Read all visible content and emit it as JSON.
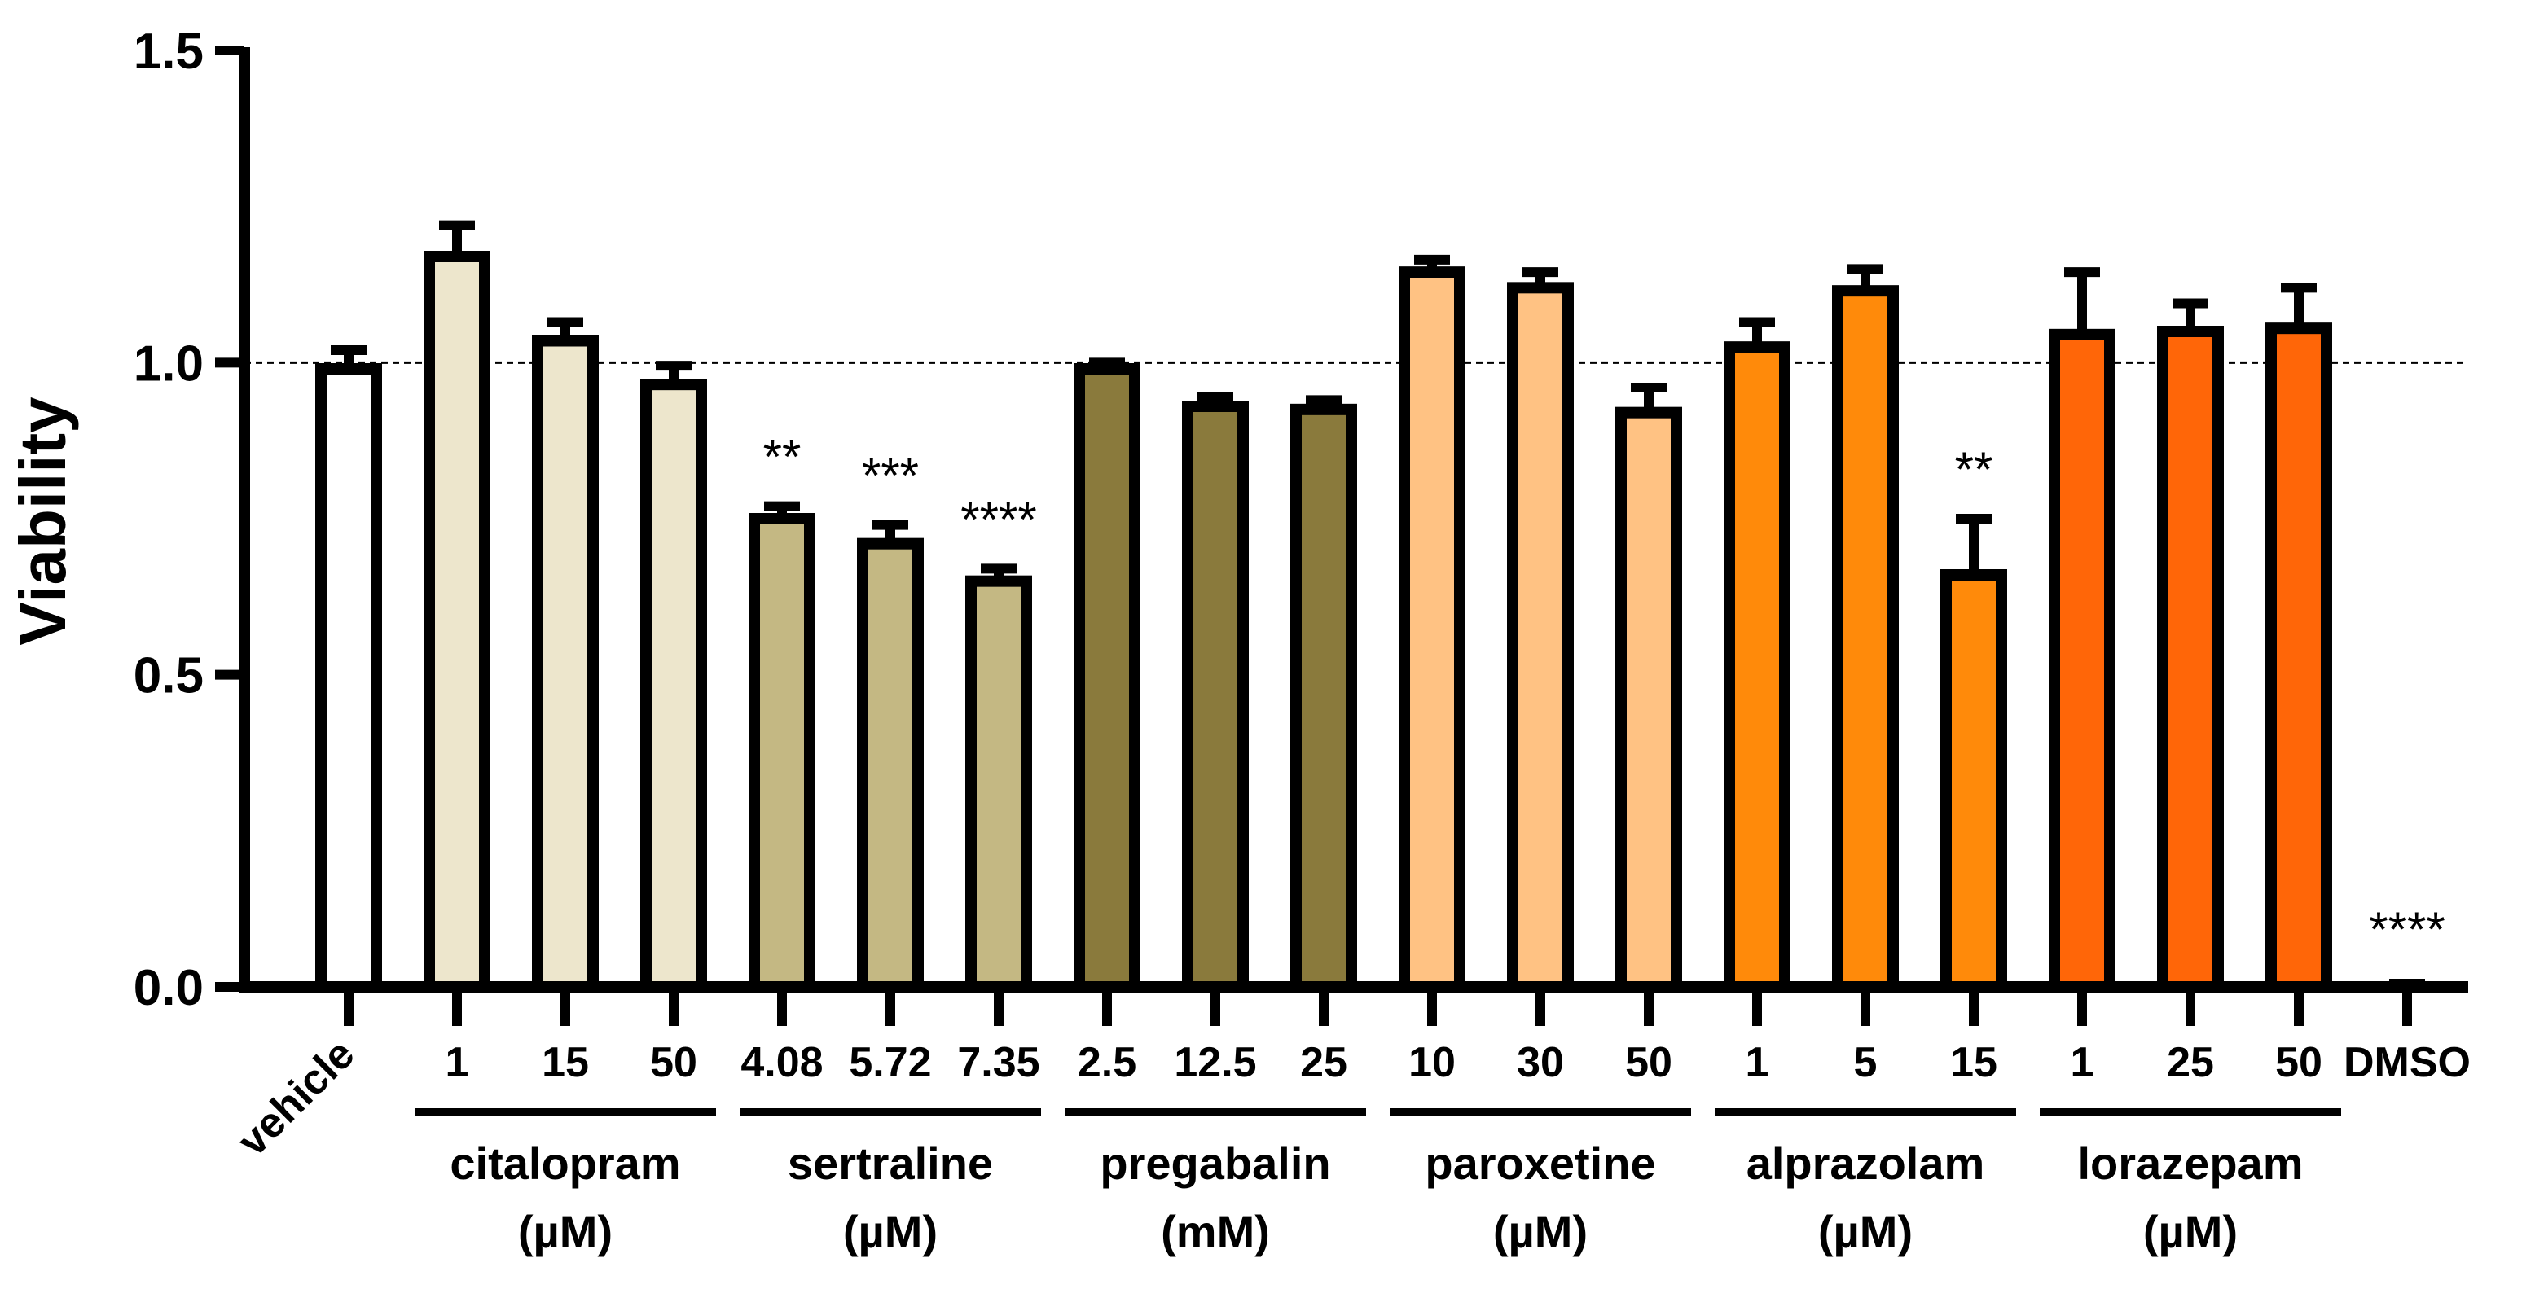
{
  "chart_data": {
    "type": "bar",
    "title": "",
    "xlabel": "",
    "ylabel": "Viability",
    "ylim": [
      0,
      1.5
    ],
    "yticks": [
      {
        "value": 0,
        "label": "0.0"
      },
      {
        "value": 0.5,
        "label": "0.5"
      },
      {
        "value": 1.0,
        "label": "1.0"
      },
      {
        "value": 1.5,
        "label": "1.5"
      }
    ],
    "reference_line": 1.0,
    "categories": [
      {
        "label": "vehicle",
        "value": 0.99,
        "err": 0.03,
        "color": "#ffffff",
        "sig": "",
        "rotated": true
      },
      {
        "label": "1",
        "value": 1.17,
        "err": 0.05,
        "color": "#ede6cc",
        "sig": ""
      },
      {
        "label": "15",
        "value": 1.035,
        "err": 0.03,
        "color": "#ede6cc",
        "sig": ""
      },
      {
        "label": "50",
        "value": 0.965,
        "err": 0.03,
        "color": "#ede6cc",
        "sig": ""
      },
      {
        "label": "4.08",
        "value": 0.75,
        "err": 0.02,
        "color": "#c4b883",
        "sig": "**"
      },
      {
        "label": "5.72",
        "value": 0.71,
        "err": 0.03,
        "color": "#c4b883",
        "sig": "***"
      },
      {
        "label": "7.35",
        "value": 0.65,
        "err": 0.02,
        "color": "#c4b883",
        "sig": "****"
      },
      {
        "label": "2.5",
        "value": 0.99,
        "err": 0.01,
        "color": "#8a7a3c",
        "sig": ""
      },
      {
        "label": "12.5",
        "value": 0.93,
        "err": 0.015,
        "color": "#8a7a3c",
        "sig": ""
      },
      {
        "label": "25",
        "value": 0.925,
        "err": 0.015,
        "color": "#8a7a3c",
        "sig": ""
      },
      {
        "label": "10",
        "value": 1.145,
        "err": 0.02,
        "color": "#ffc283",
        "sig": ""
      },
      {
        "label": "30",
        "value": 1.12,
        "err": 0.025,
        "color": "#ffc283",
        "sig": ""
      },
      {
        "label": "50",
        "value": 0.92,
        "err": 0.04,
        "color": "#ffc283",
        "sig": ""
      },
      {
        "label": "1",
        "value": 1.025,
        "err": 0.04,
        "color": "#ff8a0a",
        "sig": ""
      },
      {
        "label": "5",
        "value": 1.115,
        "err": 0.035,
        "color": "#ff8a0a",
        "sig": ""
      },
      {
        "label": "15",
        "value": 0.66,
        "err": 0.09,
        "color": "#ff8a0a",
        "sig": "**"
      },
      {
        "label": "1",
        "value": 1.045,
        "err": 0.1,
        "color": "#ff6608",
        "sig": ""
      },
      {
        "label": "25",
        "value": 1.05,
        "err": 0.045,
        "color": "#ff6608",
        "sig": ""
      },
      {
        "label": "50",
        "value": 1.055,
        "err": 0.065,
        "color": "#ff6608",
        "sig": ""
      },
      {
        "label": "DMSO",
        "value": 0.0,
        "err": 0.0,
        "color": "#ffffff",
        "sig": "****"
      }
    ],
    "groups": [
      {
        "name": "citalopram",
        "unit": "(µM)",
        "start": 1,
        "end": 3
      },
      {
        "name": "sertraline",
        "unit": "(µM)",
        "start": 4,
        "end": 6
      },
      {
        "name": "pregabalin",
        "unit": "(mM)",
        "start": 7,
        "end": 9
      },
      {
        "name": "paroxetine",
        "unit": "(µM)",
        "start": 10,
        "end": 12
      },
      {
        "name": "alprazolam",
        "unit": "(µM)",
        "start": 13,
        "end": 15
      },
      {
        "name": "lorazepam",
        "unit": "(µM)",
        "start": 16,
        "end": 18
      }
    ]
  }
}
